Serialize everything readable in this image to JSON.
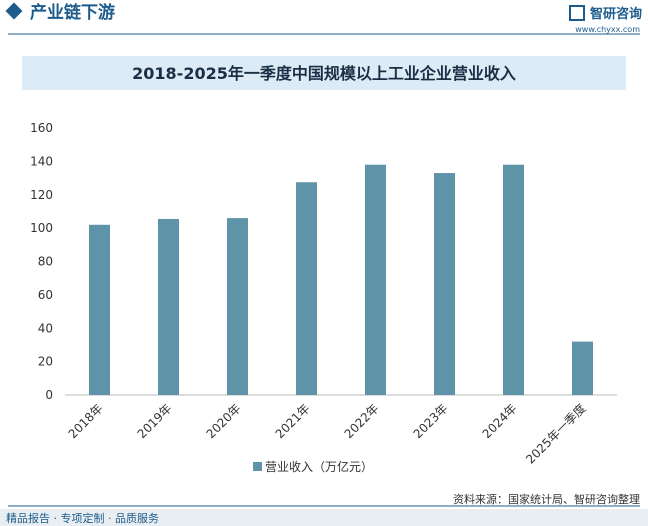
{
  "header": {
    "section": "产业链下游",
    "brand": "智研咨询",
    "url": "www.chyxx.com"
  },
  "chart_data": {
    "type": "bar",
    "title": "2018-2025年一季度中国规模以上工业企业营业收入",
    "categories": [
      "2018年",
      "2019年",
      "2020年",
      "2021年",
      "2022年",
      "2023年",
      "2024年",
      "2025年一季度"
    ],
    "series": [
      {
        "name": "营业收入（万亿元）",
        "color": "#5e93a8",
        "values": [
          102,
          105.5,
          106,
          127.5,
          138,
          133,
          138,
          32
        ]
      }
    ],
    "ylim": [
      0,
      160
    ],
    "yticks": [
      0,
      20,
      40,
      60,
      80,
      100,
      120,
      140,
      160
    ],
    "grid": false,
    "legend": "bottom"
  },
  "footer": {
    "source": "资料来源：国家统计局、智研咨询整理",
    "slogan": "精品报告 · 专项定制 · 品质服务"
  }
}
